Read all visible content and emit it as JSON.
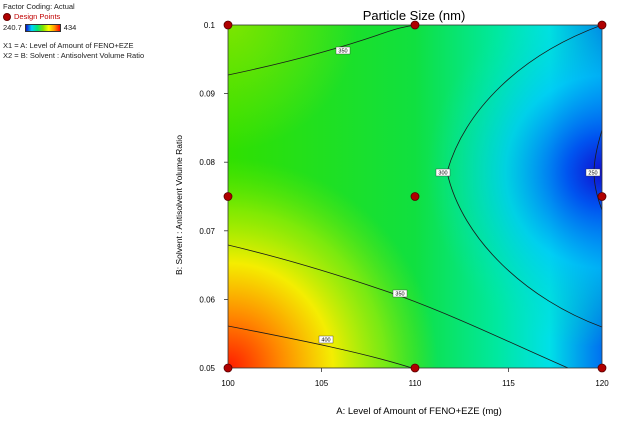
{
  "legend": {
    "heading": "Factor Coding: Actual",
    "design_points_label": "Design Points",
    "colorbar_min": "240.7",
    "colorbar_max": "434",
    "colors": [
      "#1010c8",
      "#00d0ff",
      "#00e676",
      "#7ee000",
      "#ffff00",
      "#ff9900",
      "#ff0000"
    ],
    "x1_def": "X1 = A: Level of Amount of FENO+EZE",
    "x2_def": "X2 = B: Solvent : Antisolvent Volume Ratio"
  },
  "chart_data": {
    "type": "contour",
    "title": "Particle Size  (nm)",
    "xlabel": "A: Level of Amount of FENO+EZE (mg)",
    "ylabel": "B: Solvent : Antisolvent Volume Ratio",
    "xlim": [
      100,
      120
    ],
    "ylim": [
      0.05,
      0.1
    ],
    "x_ticks": [
      "100",
      "105",
      "110",
      "115",
      "120"
    ],
    "y_ticks": [
      "0.05",
      "0.06",
      "0.07",
      "0.08",
      "0.09",
      "0.1"
    ],
    "contour_labels": [
      "350",
      "300",
      "250",
      "350",
      "400"
    ],
    "design_points": [
      {
        "x": 100,
        "y": 0.1
      },
      {
        "x": 110,
        "y": 0.1
      },
      {
        "x": 120,
        "y": 0.1
      },
      {
        "x": 100,
        "y": 0.075
      },
      {
        "x": 110,
        "y": 0.075
      },
      {
        "x": 120,
        "y": 0.075
      },
      {
        "x": 100,
        "y": 0.05
      },
      {
        "x": 110,
        "y": 0.05
      },
      {
        "x": 120,
        "y": 0.05
      }
    ]
  }
}
